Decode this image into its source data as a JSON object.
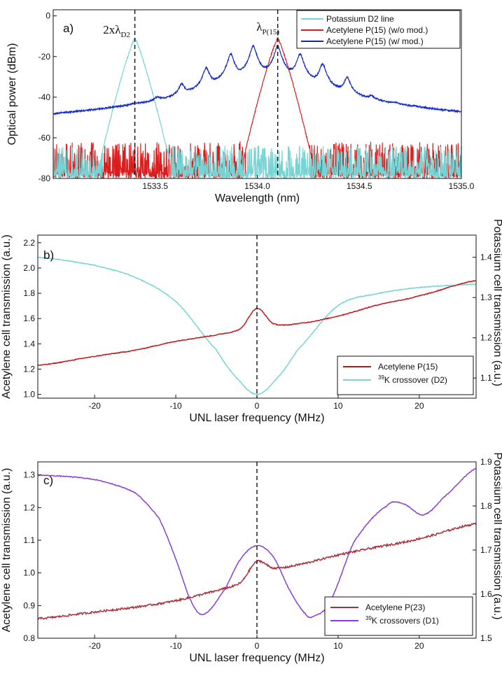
{
  "chart_data": [
    {
      "type": "line",
      "panel_label": "a)",
      "xlabel": "Wavelength (nm)",
      "ylabel": "Optical power (dBm)",
      "xlim": [
        1533.0,
        1535.0
      ],
      "ylim": [
        -80,
        3
      ],
      "xticks": [
        1533.5,
        1534.0,
        1534.5,
        1535.0
      ],
      "xtick_labels": [
        "1533.5",
        "1534.0",
        "1534.5",
        "1535.0"
      ],
      "yticks": [
        -80,
        -60,
        -40,
        -20,
        0
      ],
      "ytick_labels": [
        "-80",
        "-60",
        "-40",
        "-20",
        "0"
      ],
      "legend_position": "top-right",
      "annotations": [
        {
          "text_parts": [
            "2xλ",
            "D2"
          ],
          "x": 1533.4
        },
        {
          "text_parts": [
            "λ",
            "P(15)"
          ],
          "x": 1534.1
        }
      ],
      "vlines": [
        1533.4,
        1534.1
      ],
      "series": [
        {
          "name": "Potassium D2 line",
          "color": "#76d4d4",
          "shape": "peaks",
          "noise_floor": -75,
          "noise_range": [
            -80,
            -64
          ],
          "peaks": [
            {
              "x": 1533.4,
              "y": -11,
              "w": 0.05
            }
          ],
          "values_desc": "Single peak at 1533.4 nm reaching -11 dBm; noise floor between -80 and -64 dBm elsewhere"
        },
        {
          "name": "Acetylene P(15) (w/o mod.)",
          "color": "#d81e1e",
          "shape": "peaks",
          "noise_floor": -75,
          "noise_range": [
            -80,
            -62
          ],
          "peaks": [
            {
              "x": 1534.1,
              "y": -11,
              "w": 0.05
            }
          ],
          "values_desc": "Single peak at 1534.1 nm reaching -11 dBm; noise floor between -80 and -62 dBm elsewhere"
        },
        {
          "name": "Acetylene P(15) (w/ mod.)",
          "color": "#1228c8",
          "shape": "comb",
          "noise_floor": -75,
          "noise_range": [
            -80,
            -62
          ],
          "peaks": [
            {
              "x": 1533.4,
              "y": -52
            },
            {
              "x": 1533.51,
              "y": -45
            },
            {
              "x": 1533.63,
              "y": -35
            },
            {
              "x": 1533.75,
              "y": -26
            },
            {
              "x": 1533.87,
              "y": -19
            },
            {
              "x": 1533.98,
              "y": -15
            },
            {
              "x": 1534.1,
              "y": -15
            },
            {
              "x": 1534.21,
              "y": -19
            },
            {
              "x": 1534.32,
              "y": -24
            },
            {
              "x": 1534.44,
              "y": -31
            },
            {
              "x": 1534.56,
              "y": -44
            },
            {
              "x": 1534.67,
              "y": -51
            },
            {
              "x": 1534.79,
              "y": -58
            }
          ],
          "values_desc": "Comb of sidebands spaced ~0.115 nm centered at 1534.1 nm with a background baseline near -57 dBm between the sidebands"
        }
      ]
    },
    {
      "type": "line",
      "panel_label": "b)",
      "xlabel": "UNL laser frequency (MHz)",
      "ylabel": "Acetylene cell transmission (a.u.)",
      "y2label": "Potassium cell transmission (a.u.)",
      "xlim": [
        -27,
        27
      ],
      "ylim": [
        0.97,
        2.26
      ],
      "y2lim": [
        1.05,
        1.455
      ],
      "xticks": [
        -20,
        -10,
        0,
        10,
        20
      ],
      "xtick_labels": [
        "-20",
        "-10",
        "0",
        "10",
        "20"
      ],
      "yticks": [
        1.0,
        1.2,
        1.4,
        1.6,
        1.8,
        2.0,
        2.2
      ],
      "ytick_labels": [
        "1.0",
        "1.2",
        "1.4",
        "1.6",
        "1.8",
        "2.0",
        "2.2"
      ],
      "y2ticks": [
        1.1,
        1.2,
        1.3,
        1.4
      ],
      "y2tick_labels": [
        "1.1",
        "1.2",
        "1.3",
        "1.4"
      ],
      "legend_position": "bottom-right",
      "vlines": [
        0
      ],
      "series": [
        {
          "name": "Acetylene P(15)",
          "axis": "left",
          "color": "#c01818",
          "x": [
            -27,
            -20,
            -15,
            -10,
            -5,
            -2,
            0,
            2,
            5,
            10,
            15,
            20,
            27
          ],
          "y": [
            1.23,
            1.3,
            1.35,
            1.42,
            1.47,
            1.52,
            1.68,
            1.56,
            1.56,
            1.62,
            1.71,
            1.78,
            1.9
          ]
        },
        {
          "name": "³⁹K crossover (D2)",
          "name_parts": [
            "39",
            "K crossover (D2)"
          ],
          "axis": "right",
          "color": "#76d4d4",
          "x": [
            -27,
            -20,
            -15,
            -10,
            -5,
            -2,
            0,
            2,
            5,
            10,
            15,
            20,
            27
          ],
          "y": [
            1.4,
            1.38,
            1.35,
            1.29,
            1.17,
            1.09,
            1.06,
            1.09,
            1.17,
            1.28,
            1.31,
            1.325,
            1.333
          ]
        }
      ]
    },
    {
      "type": "line",
      "panel_label": "c)",
      "xlabel": "UNL laser frequency (MHz)",
      "ylabel": "Acetylene cell transmission (a.u.)",
      "y2label": "Potassium cell transmission (a.u.)",
      "xlim": [
        -27,
        27
      ],
      "ylim": [
        0.8,
        1.34
      ],
      "y2lim": [
        1.5,
        1.9
      ],
      "xticks": [
        -20,
        -10,
        0,
        10,
        20
      ],
      "xtick_labels": [
        "-20",
        "-10",
        "0",
        "10",
        "20"
      ],
      "yticks": [
        0.8,
        0.9,
        1.0,
        1.1,
        1.2,
        1.3
      ],
      "ytick_labels": [
        "0.8",
        "0.9",
        "1.0",
        "1.1",
        "1.2",
        "1.3"
      ],
      "y2ticks": [
        1.5,
        1.6,
        1.7,
        1.8,
        1.9
      ],
      "y2tick_labels": [
        "1.5",
        "1.6",
        "1.7",
        "1.8",
        "1.9"
      ],
      "legend_position": "bottom-right",
      "vlines": [
        0
      ],
      "series": [
        {
          "name": "Acetylene P(23)",
          "axis": "left",
          "color": "#a8323a",
          "x": [
            -27,
            -20,
            -15,
            -10,
            -5,
            -2,
            0,
            2,
            5,
            10,
            15,
            20,
            27
          ],
          "y": [
            0.86,
            0.88,
            0.895,
            0.915,
            0.945,
            0.97,
            1.035,
            1.015,
            1.025,
            1.055,
            1.08,
            1.105,
            1.15
          ]
        },
        {
          "name": "³⁹K crossovers (D1)",
          "name_parts": [
            "39",
            "K crossovers (D1)"
          ],
          "axis": "right",
          "color": "#8a3ed6",
          "x": [
            -27,
            -20,
            -15,
            -12,
            -10,
            -8,
            -6.5,
            -4,
            -2,
            0,
            2,
            4,
            6,
            7,
            9,
            12,
            16,
            18,
            20.5,
            23,
            27
          ],
          "y": [
            1.87,
            1.86,
            1.83,
            1.77,
            1.68,
            1.58,
            1.555,
            1.61,
            1.68,
            1.71,
            1.685,
            1.61,
            1.555,
            1.55,
            1.585,
            1.72,
            1.8,
            1.805,
            1.78,
            1.82,
            1.885
          ]
        }
      ]
    }
  ]
}
